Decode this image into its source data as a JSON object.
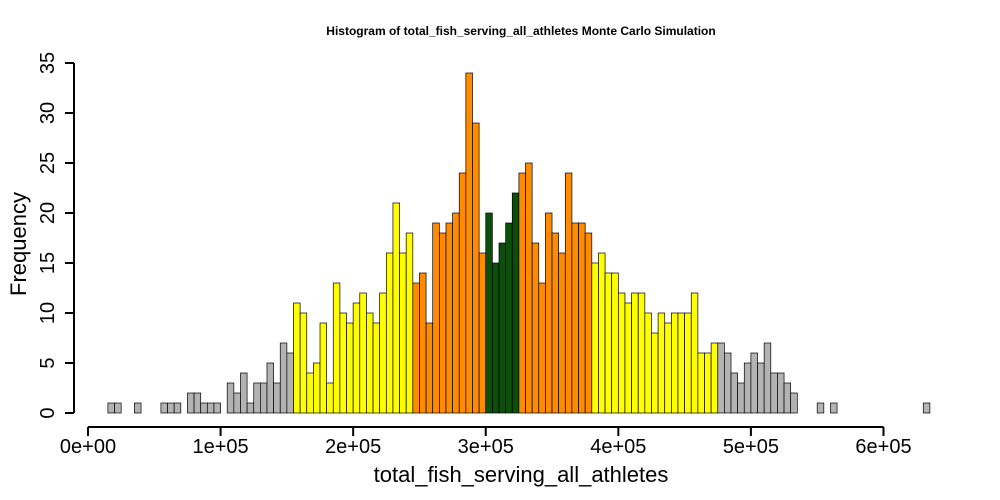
{
  "chart_data": {
    "type": "bar",
    "title": "Histogram of  total_fish_serving_all_athletes  Monte Carlo Simulation",
    "xlabel": "total_fish_serving_all_athletes",
    "ylabel": "Frequency",
    "xlim": [
      0,
      620000
    ],
    "ylim": [
      0,
      35
    ],
    "x_ticks": [
      0,
      100000,
      200000,
      300000,
      400000,
      500000,
      600000
    ],
    "x_tick_labels": [
      "0e+00",
      "1e+05",
      "2e+05",
      "3e+05",
      "4e+05",
      "5e+05",
      "6e+05"
    ],
    "y_ticks": [
      0,
      5,
      10,
      15,
      20,
      25,
      30,
      35
    ],
    "y_tick_labels": [
      "0",
      "5",
      "10",
      "15",
      "20",
      "25",
      "30",
      "35"
    ],
    "bin_start": 15000,
    "bin_width": 5000,
    "values": [
      1,
      1,
      0,
      0,
      1,
      0,
      0,
      0,
      1,
      1,
      1,
      0,
      2,
      2,
      1,
      1,
      1,
      0,
      3,
      2,
      4,
      1,
      3,
      3,
      5,
      3,
      7,
      6,
      11,
      10,
      4,
      5,
      9,
      3,
      13,
      10,
      9,
      11,
      12,
      10,
      9,
      12,
      16,
      21,
      16,
      18,
      13,
      14,
      9,
      19,
      18,
      19,
      20,
      24,
      34,
      29,
      16,
      20,
      15,
      17,
      19,
      22,
      24,
      25,
      17,
      13,
      20,
      18,
      16,
      24,
      19,
      19,
      18,
      15,
      16,
      14,
      14,
      12,
      11,
      12,
      12,
      10,
      8,
      10,
      9,
      10,
      10,
      10,
      12,
      6,
      6,
      7,
      7,
      6,
      4,
      3,
      5,
      6,
      5,
      7,
      4,
      4,
      3,
      2,
      0,
      0,
      0,
      1,
      0,
      1,
      0,
      0,
      0,
      0,
      0,
      0,
      0,
      0,
      0,
      0,
      0,
      0,
      0,
      1
    ],
    "bin_colors": [
      {
        "from": 15000,
        "to": 155000,
        "color": "#b3b3b3",
        "label": "gray"
      },
      {
        "from": 155000,
        "to": 245000,
        "color": "#ffff00",
        "label": "yellow"
      },
      {
        "from": 245000,
        "to": 300000,
        "color": "#ff8c00",
        "label": "orange"
      },
      {
        "from": 300000,
        "to": 325000,
        "color": "#0b4f0b",
        "label": "dark-green"
      },
      {
        "from": 325000,
        "to": 380000,
        "color": "#ff8c00",
        "label": "orange"
      },
      {
        "from": 380000,
        "to": 475000,
        "color": "#ffff00",
        "label": "yellow"
      },
      {
        "from": 475000,
        "to": 620000,
        "color": "#b3b3b3",
        "label": "gray"
      }
    ],
    "bar_stroke": "#000000"
  }
}
